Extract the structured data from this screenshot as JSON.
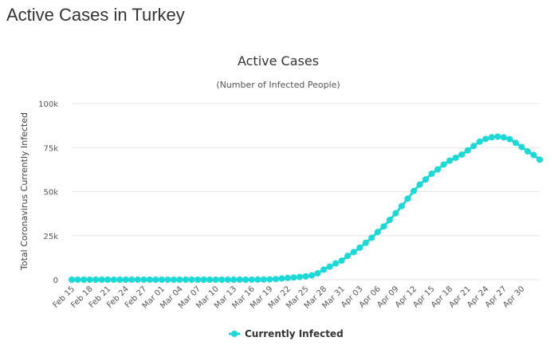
{
  "page": {
    "title": "Active Cases in Turkey"
  },
  "colors": {
    "series": "#1ad9d6",
    "grid": "#e6e6e6",
    "text": "#333333"
  },
  "chart_data": {
    "type": "line",
    "title": "Active Cases",
    "subtitle": "(Number of Infected People)",
    "xlabel": "",
    "ylabel": "Total Coronavirus Currently Infected",
    "ylim": [
      0,
      100000
    ],
    "yticks": [
      0,
      25000,
      50000,
      75000,
      100000
    ],
    "ytick_labels": [
      "0",
      "25k",
      "50k",
      "75k",
      "100k"
    ],
    "xtick_labels": [
      "Feb 15",
      "Feb 18",
      "Feb 21",
      "Feb 24",
      "Feb 27",
      "Mar 01",
      "Mar 04",
      "Mar 07",
      "Mar 10",
      "Mar 13",
      "Mar 16",
      "Mar 19",
      "Mar 22",
      "Mar 25",
      "Mar 28",
      "Mar 31",
      "Apr 03",
      "Apr 06",
      "Apr 09",
      "Apr 12",
      "Apr 15",
      "Apr 18",
      "Apr 21",
      "Apr 24",
      "Apr 27",
      "Apr 30"
    ],
    "grid": true,
    "legend": "bottom-center",
    "series": [
      {
        "name": "Currently Infected",
        "values": [
          0,
          0,
          0,
          0,
          0,
          0,
          0,
          0,
          0,
          0,
          0,
          0,
          0,
          0,
          0,
          0,
          0,
          0,
          0,
          0,
          0,
          0,
          0,
          0,
          0,
          0,
          0,
          0,
          5,
          6,
          18,
          47,
          98,
          191,
          359,
          670,
          947,
          1236,
          1529,
          1872,
          2433,
          3629,
          5698,
          7402,
          9217,
          10827,
          13531,
          15679,
          18135,
          20921,
          23835,
          27069,
          30216,
          33955,
          37725,
          41784,
          46001,
          50317,
          53979,
          56956,
          60161,
          62616,
          65395,
          67591,
          69242,
          71048,
          73395,
          75928,
          78416,
          79941,
          80880,
          81226,
          80808,
          79826,
          77739,
          75356,
          72831,
          70813,
          68129
        ]
      }
    ]
  }
}
